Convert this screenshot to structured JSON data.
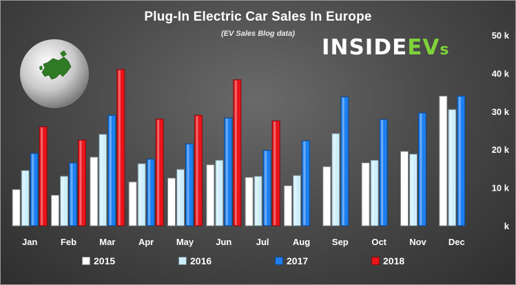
{
  "brand": {
    "logo_part1": "INSIDE",
    "logo_part2": "EV",
    "logo_part3": "s"
  },
  "chart_data": {
    "type": "bar",
    "title": "Plug-In Electric Car Sales In Europe",
    "subtitle": "(EV Sales Blog data)",
    "categories": [
      "Jan",
      "Feb",
      "Mar",
      "Apr",
      "May",
      "Jun",
      "Jul",
      "Aug",
      "Sep",
      "Oct",
      "Nov",
      "Dec"
    ],
    "series": [
      {
        "name": "2015",
        "color": "#ffffff",
        "values": [
          9500,
          8000,
          18000,
          11500,
          12500,
          16000,
          12700,
          10500,
          15500,
          16500,
          19500,
          34000
        ]
      },
      {
        "name": "2016",
        "color": "#cdeffc",
        "values": [
          14500,
          13000,
          24000,
          16300,
          14800,
          17200,
          13000,
          13200,
          24200,
          17200,
          18800,
          30500
        ]
      },
      {
        "name": "2017",
        "color": "#1d7ff0",
        "values": [
          19000,
          16500,
          29000,
          17500,
          21500,
          28300,
          19800,
          22300,
          33800,
          27900,
          29600,
          34000
        ]
      },
      {
        "name": "2018",
        "color": "#e8141a",
        "values": [
          26000,
          22500,
          41000,
          28000,
          29000,
          38300,
          27500,
          null,
          null,
          null,
          null,
          null
        ]
      }
    ],
    "yaxis": {
      "min": 0,
      "max": 50000,
      "ticks": [
        {
          "value": 0,
          "label": "k"
        },
        {
          "value": 10000,
          "label": "10 k"
        },
        {
          "value": 20000,
          "label": "20 k"
        },
        {
          "value": 30000,
          "label": "30 k"
        },
        {
          "value": 40000,
          "label": "40 k"
        },
        {
          "value": 50000,
          "label": "50 k"
        }
      ],
      "position": "right"
    },
    "grid": false,
    "legend_position": "bottom"
  }
}
